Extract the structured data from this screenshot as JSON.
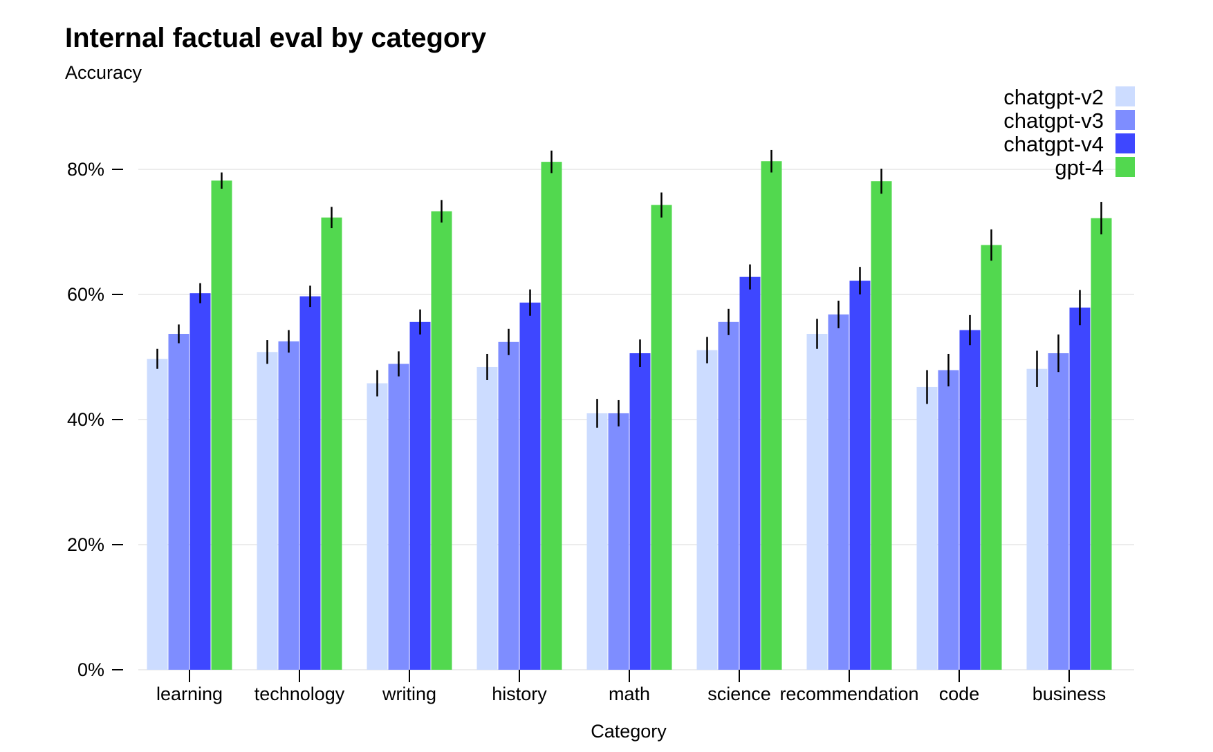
{
  "chart_data": {
    "type": "bar",
    "title": "Internal factual eval by category",
    "ylabel": "Accuracy",
    "xlabel": "Category",
    "ylim": [
      0,
      0.9
    ],
    "yticks": [
      0,
      0.2,
      0.4,
      0.6,
      0.8
    ],
    "ytick_labels": [
      "0%",
      "20%",
      "40%",
      "60%",
      "80%"
    ],
    "grid": "horizontal",
    "legend_position": "top-right",
    "categories": [
      "learning",
      "technology",
      "writing",
      "history",
      "math",
      "science",
      "recommendation",
      "code",
      "business"
    ],
    "series": [
      {
        "name": "chatgpt-v2",
        "color": "#ccdcff",
        "values": [
          0.497,
          0.508,
          0.458,
          0.484,
          0.41,
          0.511,
          0.537,
          0.452,
          0.481
        ],
        "errors": [
          0.016,
          0.019,
          0.021,
          0.021,
          0.023,
          0.021,
          0.024,
          0.027,
          0.029
        ]
      },
      {
        "name": "chatgpt-v3",
        "color": "#7e8dff",
        "values": [
          0.537,
          0.525,
          0.489,
          0.524,
          0.41,
          0.556,
          0.568,
          0.479,
          0.506
        ],
        "errors": [
          0.015,
          0.018,
          0.02,
          0.021,
          0.021,
          0.021,
          0.022,
          0.026,
          0.03
        ]
      },
      {
        "name": "chatgpt-v4",
        "color": "#3e47ff",
        "values": [
          0.602,
          0.597,
          0.556,
          0.587,
          0.506,
          0.628,
          0.622,
          0.543,
          0.579
        ],
        "errors": [
          0.016,
          0.017,
          0.02,
          0.021,
          0.022,
          0.02,
          0.022,
          0.024,
          0.028
        ]
      },
      {
        "name": "gpt-4",
        "color": "#52d84f",
        "values": [
          0.782,
          0.723,
          0.733,
          0.812,
          0.743,
          0.813,
          0.781,
          0.679,
          0.722
        ],
        "errors": [
          0.013,
          0.017,
          0.018,
          0.018,
          0.02,
          0.018,
          0.02,
          0.025,
          0.026
        ]
      }
    ]
  }
}
